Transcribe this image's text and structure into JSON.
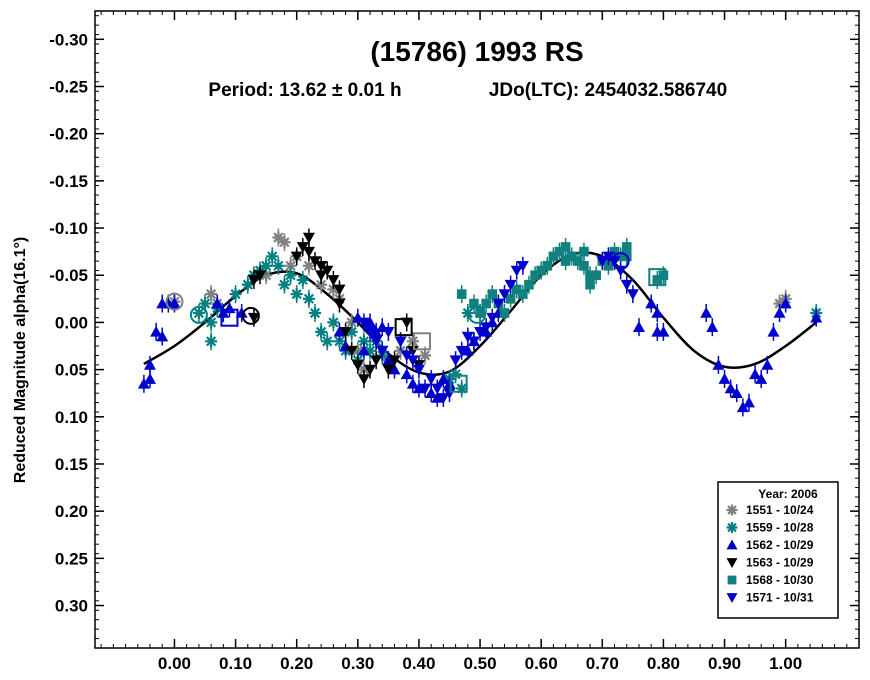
{
  "chart_data": {
    "type": "scatter",
    "title": "(15786) 1993 RS",
    "subtitle_period": "Period: 13.62 ± 0.01 h",
    "subtitle_epoch": "JDo(LTC): 2454032.586740",
    "ylabel": "Reduced Magnitude alpha(16.1°)",
    "xlabel": "",
    "xlim": [
      -0.13,
      1.12
    ],
    "ylim": [
      -0.33,
      0.345
    ],
    "y_inverted": true,
    "x_ticks": [
      "0.00",
      "0.10",
      "0.20",
      "0.30",
      "0.40",
      "0.50",
      "0.60",
      "0.70",
      "0.80",
      "0.90",
      "1.00"
    ],
    "x_tick_values": [
      0.0,
      0.1,
      0.2,
      0.3,
      0.4,
      0.5,
      0.6,
      0.7,
      0.8,
      0.9,
      1.0
    ],
    "y_ticks": [
      "-0.30",
      "-0.25",
      "-0.20",
      "-0.15",
      "-0.10",
      "-0.05",
      "0.00",
      "0.05",
      "0.10",
      "0.15",
      "0.20",
      "0.25",
      "0.30"
    ],
    "y_tick_values": [
      -0.3,
      -0.25,
      -0.2,
      -0.15,
      -0.1,
      -0.05,
      0.0,
      0.05,
      0.1,
      0.15,
      0.2,
      0.25,
      0.3
    ],
    "grid": false,
    "legend_placement": "bottom-right",
    "legend_title": "Year: 2006",
    "fit_curve": {
      "style": "two-harmonic Fourier fit",
      "x": [
        -0.05,
        0.0,
        0.05,
        0.1,
        0.15,
        0.2,
        0.25,
        0.3,
        0.35,
        0.4,
        0.45,
        0.5,
        0.55,
        0.6,
        0.65,
        0.7,
        0.75,
        0.8,
        0.85,
        0.9,
        0.95,
        1.0,
        1.05
      ],
      "y": [
        0.044,
        0.025,
        0.0,
        -0.028,
        -0.05,
        -0.052,
        -0.03,
        0.0,
        0.033,
        0.053,
        0.052,
        0.025,
        -0.012,
        -0.05,
        -0.072,
        -0.07,
        -0.045,
        -0.005,
        0.03,
        0.047,
        0.044,
        0.025,
        0.0
      ]
    },
    "series": [
      {
        "name": "1551 - 10/24",
        "marker": "asterisk",
        "color": "#808080",
        "points": [
          [
            0.0,
            -0.022
          ],
          [
            0.06,
            -0.03
          ],
          [
            0.07,
            -0.02
          ],
          [
            0.15,
            -0.05
          ],
          [
            0.17,
            -0.09
          ],
          [
            0.18,
            -0.085
          ],
          [
            0.19,
            -0.06
          ],
          [
            0.2,
            -0.07
          ],
          [
            0.22,
            -0.06
          ],
          [
            0.24,
            -0.04
          ],
          [
            0.26,
            -0.035
          ],
          [
            0.27,
            -0.025
          ],
          [
            0.29,
            0.0
          ],
          [
            0.3,
            0.03
          ],
          [
            0.31,
            0.05
          ],
          [
            0.35,
            0.04
          ],
          [
            0.37,
            0.03
          ],
          [
            0.39,
            0.02
          ],
          [
            0.41,
            0.035
          ],
          [
            0.99,
            -0.02
          ],
          [
            1.0,
            -0.025
          ]
        ]
      },
      {
        "name": "1559 - 10/28",
        "marker": "asterisk",
        "color": "#008080",
        "points": [
          [
            0.04,
            -0.01
          ],
          [
            0.05,
            -0.02
          ],
          [
            0.06,
            0.0
          ],
          [
            0.06,
            0.02
          ],
          [
            0.07,
            -0.015
          ],
          [
            0.1,
            -0.03
          ],
          [
            0.12,
            -0.04
          ],
          [
            0.13,
            -0.05
          ],
          [
            0.14,
            -0.055
          ],
          [
            0.15,
            -0.06
          ],
          [
            0.16,
            -0.07
          ],
          [
            0.17,
            -0.06
          ],
          [
            0.18,
            -0.04
          ],
          [
            0.19,
            -0.05
          ],
          [
            0.2,
            -0.03
          ],
          [
            0.21,
            -0.045
          ],
          [
            0.22,
            -0.025
          ],
          [
            0.23,
            -0.01
          ],
          [
            0.24,
            0.01
          ],
          [
            0.25,
            0.02
          ],
          [
            0.26,
            0.0
          ],
          [
            0.27,
            0.02
          ],
          [
            0.28,
            0.03
          ],
          [
            0.29,
            0.01
          ],
          [
            0.3,
            0.04
          ],
          [
            0.31,
            0.02
          ],
          [
            0.32,
            0.03
          ],
          [
            0.33,
            0.02
          ],
          [
            0.34,
            0.035
          ],
          [
            0.45,
            0.06
          ],
          [
            0.46,
            0.055
          ],
          [
            0.47,
            0.07
          ],
          [
            0.48,
            -0.01
          ],
          [
            0.5,
            -0.01
          ],
          [
            1.05,
            -0.01
          ]
        ]
      },
      {
        "name": "1562 - 10/29",
        "marker": "triangle-up",
        "color": "#0000cc",
        "points": [
          [
            -0.05,
            0.065
          ],
          [
            -0.04,
            0.06
          ],
          [
            -0.04,
            0.045
          ],
          [
            -0.03,
            0.01
          ],
          [
            -0.02,
            0.015
          ],
          [
            -0.02,
            -0.02
          ],
          [
            -0.01,
            -0.02
          ],
          [
            0.07,
            -0.02
          ],
          [
            0.08,
            -0.01
          ],
          [
            0.09,
            -0.015
          ],
          [
            0.11,
            -0.01
          ],
          [
            0.27,
            0.01
          ],
          [
            0.28,
            0.025
          ],
          [
            0.3,
            -0.005
          ],
          [
            0.31,
            0.03
          ],
          [
            0.32,
            0.0
          ],
          [
            0.33,
            0.01
          ],
          [
            0.34,
            0.005
          ],
          [
            0.35,
            0.04
          ],
          [
            0.36,
            0.05
          ],
          [
            0.38,
            0.055
          ],
          [
            0.39,
            0.065
          ],
          [
            0.4,
            0.07
          ],
          [
            0.42,
            0.075
          ],
          [
            0.43,
            0.08
          ],
          [
            0.44,
            0.06
          ],
          [
            0.45,
            0.065
          ],
          [
            0.48,
            0.03
          ],
          [
            0.49,
            0.02
          ],
          [
            0.51,
            0.01
          ],
          [
            0.52,
            0.0
          ],
          [
            0.53,
            -0.01
          ],
          [
            0.76,
            0.005
          ],
          [
            0.78,
            -0.02
          ],
          [
            0.79,
            -0.01
          ],
          [
            0.8,
            0.01
          ],
          [
            0.79,
            0.01
          ],
          [
            0.87,
            -0.01
          ],
          [
            0.88,
            0.005
          ],
          [
            0.89,
            0.045
          ],
          [
            0.9,
            0.06
          ],
          [
            0.91,
            0.07
          ],
          [
            0.92,
            0.075
          ],
          [
            0.93,
            0.09
          ],
          [
            0.94,
            0.085
          ],
          [
            0.95,
            0.055
          ],
          [
            0.96,
            0.06
          ],
          [
            0.97,
            0.045
          ],
          [
            0.98,
            0.01
          ],
          [
            0.99,
            -0.01
          ],
          [
            1.0,
            -0.02
          ],
          [
            1.05,
            -0.005
          ],
          [
            0.0,
            -0.02
          ]
        ]
      },
      {
        "name": "1563 - 10/29",
        "marker": "triangle-down",
        "color": "#000000",
        "points": [
          [
            0.13,
            -0.005
          ],
          [
            0.13,
            -0.045
          ],
          [
            0.14,
            -0.05
          ],
          [
            0.2,
            -0.07
          ],
          [
            0.21,
            -0.08
          ],
          [
            0.22,
            -0.09
          ],
          [
            0.22,
            -0.075
          ],
          [
            0.23,
            -0.065
          ],
          [
            0.24,
            -0.06
          ],
          [
            0.24,
            -0.05
          ],
          [
            0.25,
            -0.055
          ],
          [
            0.26,
            -0.045
          ],
          [
            0.27,
            -0.035
          ],
          [
            0.27,
            -0.02
          ],
          [
            0.28,
            0.01
          ],
          [
            0.29,
            0.03
          ],
          [
            0.3,
            0.045
          ],
          [
            0.31,
            0.06
          ],
          [
            0.32,
            0.05
          ],
          [
            0.33,
            0.04
          ],
          [
            0.34,
            0.03
          ],
          [
            0.35,
            0.05
          ],
          [
            0.36,
            0.04
          ],
          [
            0.37,
            0.02
          ],
          [
            0.38,
            0.0
          ],
          [
            0.39,
            0.03
          ],
          [
            0.4,
            0.045
          ]
        ]
      },
      {
        "name": "1568 - 10/30",
        "marker": "square",
        "color": "#138080",
        "points": [
          [
            0.47,
            -0.03
          ],
          [
            0.49,
            -0.02
          ],
          [
            0.5,
            -0.01
          ],
          [
            0.51,
            -0.02
          ],
          [
            0.52,
            -0.03
          ],
          [
            0.53,
            -0.02
          ],
          [
            0.54,
            -0.01
          ],
          [
            0.55,
            -0.025
          ],
          [
            0.56,
            -0.035
          ],
          [
            0.57,
            -0.03
          ],
          [
            0.58,
            -0.04
          ],
          [
            0.59,
            -0.05
          ],
          [
            0.6,
            -0.055
          ],
          [
            0.61,
            -0.06
          ],
          [
            0.62,
            -0.07
          ],
          [
            0.63,
            -0.075
          ],
          [
            0.64,
            -0.08
          ],
          [
            0.64,
            -0.065
          ],
          [
            0.65,
            -0.07
          ],
          [
            0.66,
            -0.065
          ],
          [
            0.67,
            -0.075
          ],
          [
            0.67,
            -0.06
          ],
          [
            0.68,
            -0.05
          ],
          [
            0.68,
            -0.04
          ],
          [
            0.69,
            -0.05
          ],
          [
            0.7,
            -0.065
          ],
          [
            0.71,
            -0.06
          ],
          [
            0.72,
            -0.075
          ],
          [
            0.73,
            -0.07
          ],
          [
            0.74,
            -0.08
          ],
          [
            0.74,
            -0.07
          ],
          [
            0.79,
            -0.045
          ],
          [
            0.8,
            -0.05
          ]
        ]
      },
      {
        "name": "1571 - 10/31",
        "marker": "triangle-down",
        "color": "#0000cc",
        "points": [
          [
            0.31,
            0.0
          ],
          [
            0.32,
            0.01
          ],
          [
            0.33,
            0.02
          ],
          [
            0.34,
            0.03
          ],
          [
            0.35,
            0.01
          ],
          [
            0.37,
            0.02
          ],
          [
            0.38,
            0.035
          ],
          [
            0.39,
            0.04
          ],
          [
            0.4,
            0.05
          ],
          [
            0.41,
            0.07
          ],
          [
            0.42,
            0.06
          ],
          [
            0.43,
            0.07
          ],
          [
            0.44,
            0.08
          ],
          [
            0.45,
            0.075
          ],
          [
            0.46,
            0.04
          ],
          [
            0.47,
            0.03
          ],
          [
            0.48,
            0.015
          ],
          [
            0.49,
            0.02
          ],
          [
            0.5,
            0.01
          ],
          [
            0.51,
            0.005
          ],
          [
            0.52,
            -0.005
          ],
          [
            0.53,
            -0.02
          ],
          [
            0.54,
            -0.03
          ],
          [
            0.55,
            -0.04
          ],
          [
            0.56,
            -0.055
          ],
          [
            0.57,
            -0.06
          ],
          [
            0.7,
            -0.065
          ],
          [
            0.71,
            -0.07
          ],
          [
            0.72,
            -0.065
          ],
          [
            0.73,
            -0.055
          ],
          [
            0.74,
            -0.04
          ],
          [
            0.75,
            -0.03
          ]
        ]
      }
    ],
    "open_markers": [
      {
        "x": 0.0,
        "y": -0.022,
        "shape": "circle",
        "color": "#808080"
      },
      {
        "x": 0.04,
        "y": -0.008,
        "shape": "circle",
        "color": "#008080"
      },
      {
        "x": 0.09,
        "y": -0.005,
        "shape": "square",
        "color": "#0000cc"
      },
      {
        "x": 0.125,
        "y": -0.007,
        "shape": "circle",
        "color": "#000000"
      },
      {
        "x": 0.375,
        "y": 0.005,
        "shape": "square",
        "color": "#000000"
      },
      {
        "x": 0.405,
        "y": 0.02,
        "shape": "square",
        "color": "#808080"
      },
      {
        "x": 0.465,
        "y": 0.065,
        "shape": "square",
        "color": "#138080"
      },
      {
        "x": 0.495,
        "y": -0.008,
        "shape": "circle",
        "color": "#008080"
      },
      {
        "x": 0.73,
        "y": -0.065,
        "shape": "circle",
        "color": "#0000cc"
      },
      {
        "x": 0.79,
        "y": -0.048,
        "shape": "square",
        "color": "#138080"
      }
    ]
  }
}
